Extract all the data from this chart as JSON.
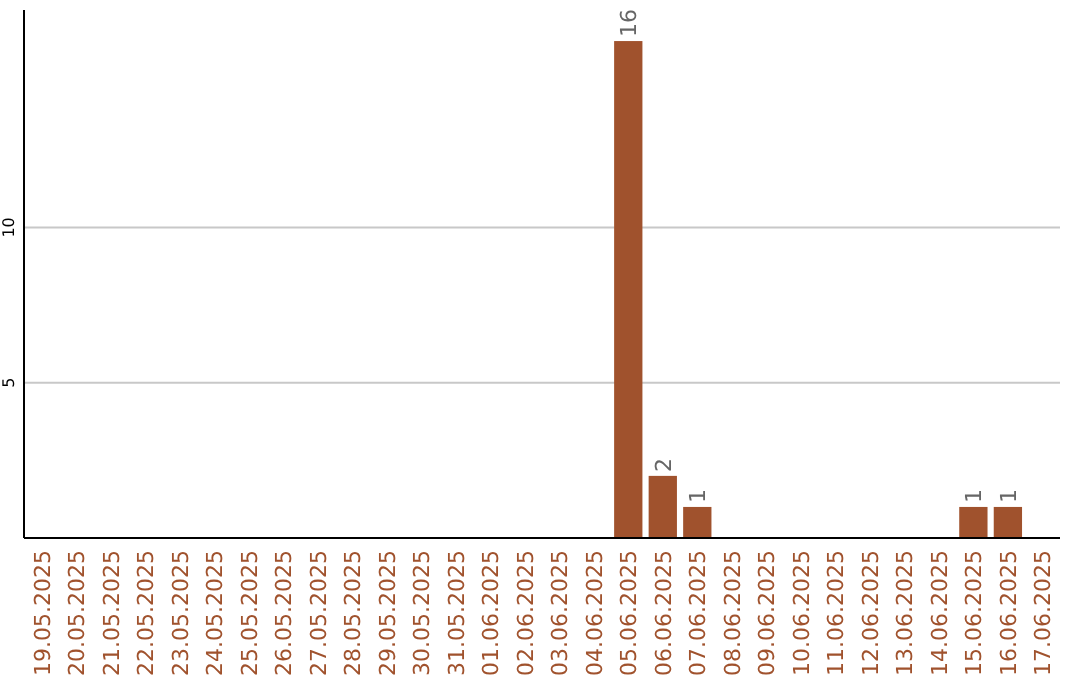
{
  "chart_data": {
    "type": "bar",
    "categories": [
      "19.05.2025",
      "20.05.2025",
      "21.05.2025",
      "22.05.2025",
      "23.05.2025",
      "24.05.2025",
      "25.05.2025",
      "26.05.2025",
      "27.05.2025",
      "28.05.2025",
      "29.05.2025",
      "30.05.2025",
      "31.05.2025",
      "01.06.2025",
      "02.06.2025",
      "03.06.2025",
      "04.06.2025",
      "05.06.2025",
      "06.06.2025",
      "07.06.2025",
      "08.06.2025",
      "09.06.2025",
      "10.06.2025",
      "11.06.2025",
      "12.06.2025",
      "13.06.2025",
      "14.06.2025",
      "15.06.2025",
      "16.06.2025",
      "17.06.2025"
    ],
    "values": [
      0,
      0,
      0,
      0,
      0,
      0,
      0,
      0,
      0,
      0,
      0,
      0,
      0,
      0,
      0,
      0,
      0,
      16,
      2,
      1,
      0,
      0,
      0,
      0,
      0,
      0,
      0,
      1,
      1,
      0
    ],
    "value_labels": [
      null,
      null,
      null,
      null,
      null,
      null,
      null,
      null,
      null,
      null,
      null,
      null,
      null,
      null,
      null,
      null,
      null,
      "16",
      "2",
      "1",
      null,
      null,
      null,
      null,
      null,
      null,
      null,
      "1",
      "1",
      null
    ],
    "color": "#a0522d",
    "ylim": [
      0,
      17
    ],
    "yticks": [
      5,
      10
    ],
    "grid": "y"
  }
}
